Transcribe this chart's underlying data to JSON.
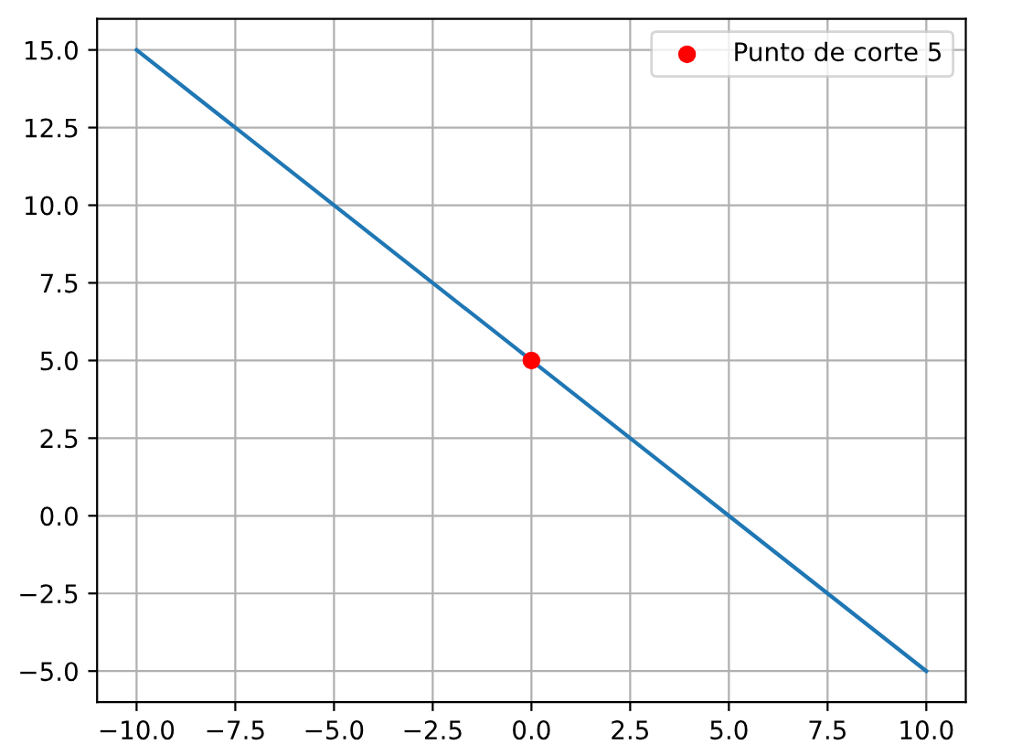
{
  "chart_data": {
    "type": "line",
    "grid": true,
    "legend": "top right",
    "xlim": [
      -11,
      11
    ],
    "ylim": [
      -6,
      16
    ],
    "xticks": [
      {
        "value": -10,
        "label": "−10.0"
      },
      {
        "value": -7.5,
        "label": "−7.5"
      },
      {
        "value": -5,
        "label": "−5.0"
      },
      {
        "value": -2.5,
        "label": "−2.5"
      },
      {
        "value": 0,
        "label": "0.0"
      },
      {
        "value": 2.5,
        "label": "2.5"
      },
      {
        "value": 5,
        "label": "5.0"
      },
      {
        "value": 7.5,
        "label": "7.5"
      },
      {
        "value": 10,
        "label": "10.0"
      }
    ],
    "yticks": [
      {
        "value": -5,
        "label": "−5.0"
      },
      {
        "value": -2.5,
        "label": "−2.5"
      },
      {
        "value": 0,
        "label": "0.0"
      },
      {
        "value": 2.5,
        "label": "2.5"
      },
      {
        "value": 5,
        "label": "5.0"
      },
      {
        "value": 7.5,
        "label": "7.5"
      },
      {
        "value": 10,
        "label": "10.0"
      },
      {
        "value": 12.5,
        "label": "12.5"
      },
      {
        "value": 15,
        "label": "15.0"
      }
    ],
    "series": [
      {
        "color": "#1f77b4",
        "x": [
          -10,
          10
        ],
        "values": [
          15,
          -5
        ]
      },
      {
        "type": "scatter",
        "name": "Punto de corte 5",
        "color": "#ff0000",
        "marker": "circle",
        "x": [
          0
        ],
        "values": [
          5
        ]
      }
    ]
  }
}
